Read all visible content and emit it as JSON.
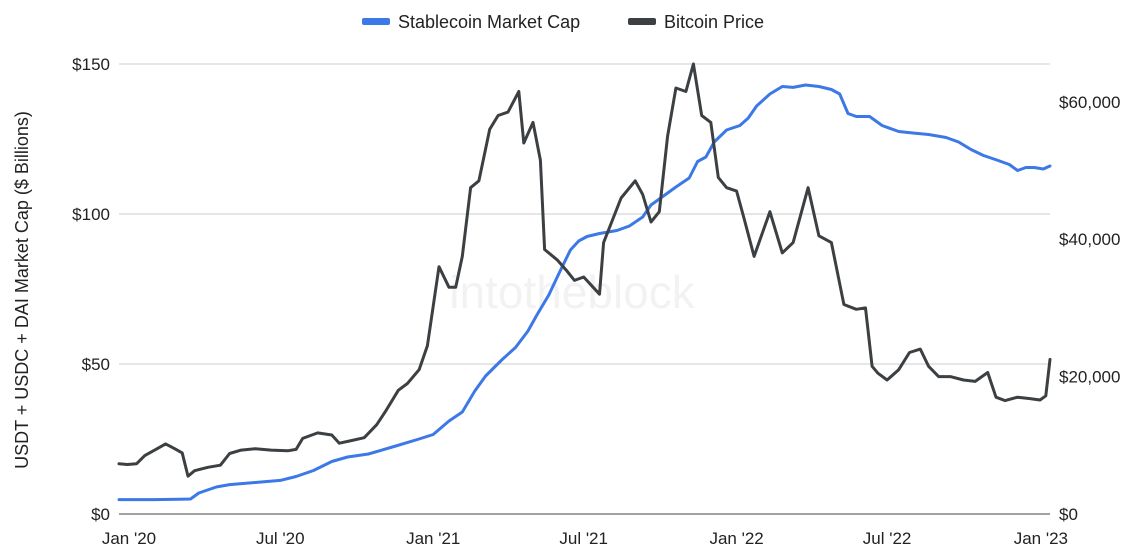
{
  "chart_data": {
    "type": "line",
    "title": "",
    "watermark": "intotheblock",
    "xlabel": "",
    "ylabel_left": "USDT + USDC + DAI Market Cap ($ Billions)",
    "ylabel_right": "",
    "y_left_range": [
      0,
      150
    ],
    "y_left_ticks": [
      0,
      50,
      100,
      150
    ],
    "y_left_tick_labels": [
      "$0",
      "$50",
      "$100",
      "$150"
    ],
    "y_right_range": [
      0,
      65500
    ],
    "y_right_ticks": [
      0,
      20000,
      40000,
      60000
    ],
    "y_right_tick_labels": [
      "$0",
      "$20,000",
      "$40,000",
      "$60,000"
    ],
    "x_range": [
      "2019-12-20",
      "2023-01-13"
    ],
    "x_ticks": [
      "2020-01-01",
      "2020-07-01",
      "2021-01-01",
      "2021-07-01",
      "2022-01-01",
      "2022-07-01",
      "2023-01-01"
    ],
    "x_tick_labels": [
      "Jan '20",
      "Jul '20",
      "Jan '21",
      "Jul '21",
      "Jan '22",
      "Jul '22",
      "Jan '23"
    ],
    "grid": true,
    "legend_position": "top-center",
    "series": [
      {
        "name": "Stablecoin Market Cap",
        "axis": "left",
        "color": "#3c78e6",
        "points": [
          [
            "2019-12-20",
            4.8
          ],
          [
            "2020-02-01",
            4.8
          ],
          [
            "2020-03-01",
            4.9
          ],
          [
            "2020-03-15",
            5.0
          ],
          [
            "2020-03-25",
            7.0
          ],
          [
            "2020-04-15",
            9.0
          ],
          [
            "2020-05-01",
            9.8
          ],
          [
            "2020-06-01",
            10.5
          ],
          [
            "2020-07-01",
            11.2
          ],
          [
            "2020-07-20",
            12.5
          ],
          [
            "2020-08-10",
            14.5
          ],
          [
            "2020-09-01",
            17.5
          ],
          [
            "2020-09-20",
            19.0
          ],
          [
            "2020-10-15",
            20.0
          ],
          [
            "2020-11-15",
            22.5
          ],
          [
            "2020-12-15",
            25.0
          ],
          [
            "2021-01-01",
            26.5
          ],
          [
            "2021-01-20",
            31.0
          ],
          [
            "2021-02-05",
            34.0
          ],
          [
            "2021-02-20",
            41.0
          ],
          [
            "2021-03-05",
            46.0
          ],
          [
            "2021-03-25",
            51.5
          ],
          [
            "2021-04-10",
            55.5
          ],
          [
            "2021-04-25",
            61.0
          ],
          [
            "2021-05-05",
            66.0
          ],
          [
            "2021-05-20",
            73.0
          ],
          [
            "2021-06-01",
            80.0
          ],
          [
            "2021-06-15",
            88.0
          ],
          [
            "2021-06-25",
            91.0
          ],
          [
            "2021-07-05",
            92.5
          ],
          [
            "2021-07-20",
            93.5
          ],
          [
            "2021-08-10",
            94.5
          ],
          [
            "2021-08-25",
            96.0
          ],
          [
            "2021-09-10",
            99.0
          ],
          [
            "2021-09-20",
            103.0
          ],
          [
            "2021-10-05",
            106.0
          ],
          [
            "2021-10-20",
            109.0
          ],
          [
            "2021-11-05",
            112.0
          ],
          [
            "2021-11-15",
            117.5
          ],
          [
            "2021-11-25",
            119.0
          ],
          [
            "2021-12-05",
            124.0
          ],
          [
            "2021-12-20",
            128.0
          ],
          [
            "2022-01-05",
            129.5
          ],
          [
            "2022-01-15",
            132.0
          ],
          [
            "2022-01-25",
            136.0
          ],
          [
            "2022-02-10",
            140.0
          ],
          [
            "2022-02-25",
            142.5
          ],
          [
            "2022-03-10",
            142.2
          ],
          [
            "2022-03-25",
            143.0
          ],
          [
            "2022-04-10",
            142.5
          ],
          [
            "2022-04-25",
            141.5
          ],
          [
            "2022-05-05",
            140.0
          ],
          [
            "2022-05-15",
            133.5
          ],
          [
            "2022-05-25",
            132.5
          ],
          [
            "2022-06-10",
            132.5
          ],
          [
            "2022-06-25",
            129.5
          ],
          [
            "2022-07-15",
            127.5
          ],
          [
            "2022-08-01",
            127.0
          ],
          [
            "2022-08-20",
            126.5
          ],
          [
            "2022-09-10",
            125.5
          ],
          [
            "2022-09-25",
            124.0
          ],
          [
            "2022-10-10",
            121.5
          ],
          [
            "2022-10-25",
            119.5
          ],
          [
            "2022-11-10",
            118.0
          ],
          [
            "2022-11-25",
            116.5
          ],
          [
            "2022-12-05",
            114.5
          ],
          [
            "2022-12-15",
            115.5
          ],
          [
            "2022-12-25",
            115.5
          ],
          [
            "2023-01-05",
            115.0
          ],
          [
            "2023-01-13",
            116.0
          ]
        ]
      },
      {
        "name": "Bitcoin Price",
        "axis": "right",
        "color": "#3c4043",
        "points": [
          [
            "2019-12-20",
            7300
          ],
          [
            "2019-12-30",
            7200
          ],
          [
            "2020-01-10",
            7300
          ],
          [
            "2020-01-20",
            8500
          ],
          [
            "2020-02-01",
            9300
          ],
          [
            "2020-02-14",
            10200
          ],
          [
            "2020-02-25",
            9500
          ],
          [
            "2020-03-05",
            8900
          ],
          [
            "2020-03-12",
            5500
          ],
          [
            "2020-03-20",
            6300
          ],
          [
            "2020-04-05",
            6800
          ],
          [
            "2020-04-20",
            7100
          ],
          [
            "2020-05-01",
            8800
          ],
          [
            "2020-05-15",
            9300
          ],
          [
            "2020-06-01",
            9500
          ],
          [
            "2020-06-20",
            9300
          ],
          [
            "2020-07-10",
            9200
          ],
          [
            "2020-07-20",
            9400
          ],
          [
            "2020-07-28",
            11000
          ],
          [
            "2020-08-15",
            11800
          ],
          [
            "2020-09-01",
            11500
          ],
          [
            "2020-09-10",
            10300
          ],
          [
            "2020-09-25",
            10700
          ],
          [
            "2020-10-10",
            11100
          ],
          [
            "2020-10-25",
            13000
          ],
          [
            "2020-11-05",
            15000
          ],
          [
            "2020-11-20",
            18000
          ],
          [
            "2020-12-01",
            19000
          ],
          [
            "2020-12-15",
            21000
          ],
          [
            "2020-12-25",
            24500
          ],
          [
            "2021-01-08",
            36000
          ],
          [
            "2021-01-20",
            33000
          ],
          [
            "2021-01-28",
            33000
          ],
          [
            "2021-02-05",
            37500
          ],
          [
            "2021-02-15",
            47500
          ],
          [
            "2021-02-25",
            48500
          ],
          [
            "2021-03-10",
            56000
          ],
          [
            "2021-03-20",
            58000
          ],
          [
            "2021-04-01",
            58500
          ],
          [
            "2021-04-14",
            61500
          ],
          [
            "2021-04-20",
            54000
          ],
          [
            "2021-05-01",
            57000
          ],
          [
            "2021-05-10",
            51500
          ],
          [
            "2021-05-15",
            38500
          ],
          [
            "2021-05-30",
            37000
          ],
          [
            "2021-06-10",
            35500
          ],
          [
            "2021-06-20",
            34000
          ],
          [
            "2021-07-01",
            34500
          ],
          [
            "2021-07-20",
            32000
          ],
          [
            "2021-07-25",
            39500
          ],
          [
            "2021-08-15",
            46000
          ],
          [
            "2021-09-01",
            48500
          ],
          [
            "2021-09-10",
            46500
          ],
          [
            "2021-09-20",
            42500
          ],
          [
            "2021-09-30",
            44000
          ],
          [
            "2021-10-10",
            55000
          ],
          [
            "2021-10-20",
            62000
          ],
          [
            "2021-11-01",
            61500
          ],
          [
            "2021-11-10",
            65500
          ],
          [
            "2021-11-20",
            58000
          ],
          [
            "2021-12-01",
            57000
          ],
          [
            "2021-12-10",
            49000
          ],
          [
            "2021-12-20",
            47500
          ],
          [
            "2022-01-01",
            47000
          ],
          [
            "2022-01-10",
            43000
          ],
          [
            "2022-01-22",
            37500
          ],
          [
            "2022-02-10",
            44000
          ],
          [
            "2022-02-25",
            38000
          ],
          [
            "2022-03-10",
            39500
          ],
          [
            "2022-03-28",
            47500
          ],
          [
            "2022-04-10",
            40500
          ],
          [
            "2022-04-25",
            39500
          ],
          [
            "2022-05-10",
            30500
          ],
          [
            "2022-05-25",
            29800
          ],
          [
            "2022-06-05",
            30000
          ],
          [
            "2022-06-13",
            21500
          ],
          [
            "2022-06-20",
            20500
          ],
          [
            "2022-07-01",
            19500
          ],
          [
            "2022-07-15",
            21000
          ],
          [
            "2022-07-28",
            23500
          ],
          [
            "2022-08-10",
            24000
          ],
          [
            "2022-08-20",
            21500
          ],
          [
            "2022-09-01",
            20000
          ],
          [
            "2022-09-15",
            20000
          ],
          [
            "2022-10-01",
            19500
          ],
          [
            "2022-10-15",
            19300
          ],
          [
            "2022-10-30",
            20600
          ],
          [
            "2022-11-09",
            17000
          ],
          [
            "2022-11-20",
            16500
          ],
          [
            "2022-12-05",
            17000
          ],
          [
            "2022-12-20",
            16800
          ],
          [
            "2023-01-01",
            16600
          ],
          [
            "2023-01-08",
            17200
          ],
          [
            "2023-01-13",
            22500
          ]
        ]
      }
    ]
  }
}
